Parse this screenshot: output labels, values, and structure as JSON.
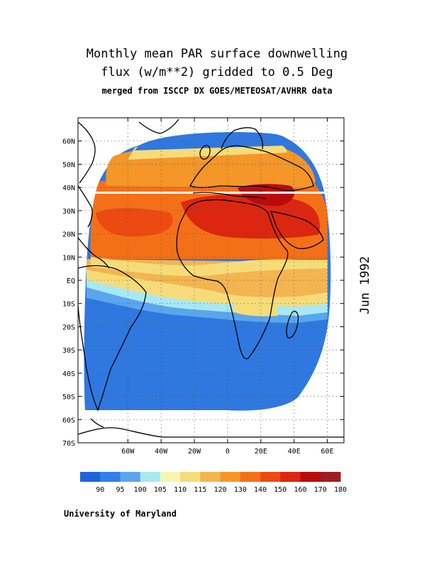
{
  "title": {
    "line1": "Monthly mean PAR surface downwelling",
    "line2": "flux (w/m**2) gridded to 0.5 Deg",
    "line3": "merged from ISCCP DX GOES/METEOSAT/AVHRR data"
  },
  "date_label": "Jun 1992",
  "credit": "University of Maryland",
  "map": {
    "lon_range": [
      -90,
      70
    ],
    "lat_range": [
      -70,
      70
    ],
    "lat_ticks": [
      {
        "v": 60,
        "label": "60N"
      },
      {
        "v": 50,
        "label": "50N"
      },
      {
        "v": 40,
        "label": "40N"
      },
      {
        "v": 30,
        "label": "30N"
      },
      {
        "v": 20,
        "label": "20N"
      },
      {
        "v": 10,
        "label": "10N"
      },
      {
        "v": 0,
        "label": "EQ"
      },
      {
        "v": -10,
        "label": "10S"
      },
      {
        "v": -20,
        "label": "20S"
      },
      {
        "v": -30,
        "label": "30S"
      },
      {
        "v": -40,
        "label": "40S"
      },
      {
        "v": -50,
        "label": "50S"
      },
      {
        "v": -60,
        "label": "60S"
      },
      {
        "v": -70,
        "label": "70S"
      }
    ],
    "lon_ticks": [
      {
        "v": -60,
        "label": "60W"
      },
      {
        "v": -40,
        "label": "40W"
      },
      {
        "v": -20,
        "label": "20W"
      },
      {
        "v": 0,
        "label": "0"
      },
      {
        "v": 20,
        "label": "20E"
      },
      {
        "v": 40,
        "label": "40E"
      },
      {
        "v": 60,
        "label": "60E"
      }
    ]
  },
  "colorbar": {
    "colors": [
      "#1e64d8",
      "#2f80e8",
      "#5aa6ec",
      "#a8e8f4",
      "#f6f6b0",
      "#f6dc78",
      "#f4b450",
      "#f49628",
      "#f47018",
      "#ec4a12",
      "#dc2610",
      "#b80c0c",
      "#9c1e22"
    ],
    "labels": [
      "90",
      "95",
      "100",
      "105",
      "110",
      "115",
      "120",
      "130",
      "140",
      "150",
      "160",
      "170",
      "180"
    ]
  }
}
